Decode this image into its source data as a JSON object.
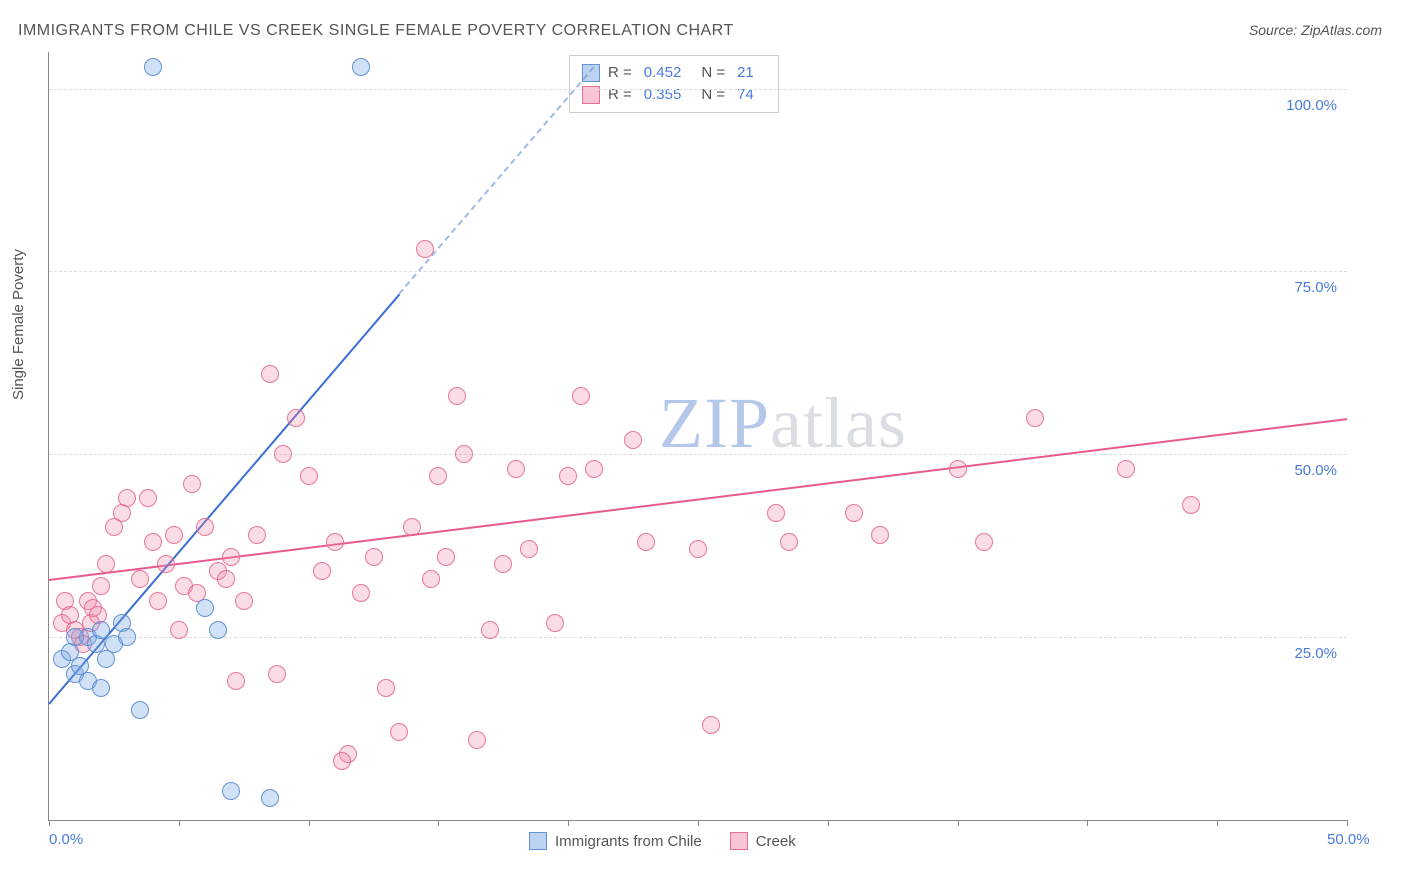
{
  "title": "IMMIGRANTS FROM CHILE VS CREEK SINGLE FEMALE POVERTY CORRELATION CHART",
  "source_label": "Source: ",
  "source_name": "ZipAtlas.com",
  "ylabel": "Single Female Poverty",
  "watermark_a": "ZIP",
  "watermark_b": "atlas",
  "chart": {
    "type": "scatter",
    "xlim": [
      0,
      50
    ],
    "ylim": [
      0,
      105
    ],
    "y_gridlines": [
      25,
      50,
      75,
      100
    ],
    "y_tick_labels": [
      "25.0%",
      "50.0%",
      "75.0%",
      "100.0%"
    ],
    "x_ticks": [
      0,
      5,
      10,
      15,
      20,
      25,
      30,
      35,
      40,
      45,
      50
    ],
    "x_tick_labels": {
      "0": "0.0%",
      "50": "50.0%"
    },
    "background_color": "#ffffff",
    "grid_color": "#dcdcdc",
    "axis_color": "#888888",
    "series": {
      "blue": {
        "label": "Immigrants from Chile",
        "color_fill": "rgba(120,165,225,0.35)",
        "color_stroke": "#5a8cd2",
        "R": "0.452",
        "N": "21",
        "points": [
          [
            0.5,
            22
          ],
          [
            0.8,
            23
          ],
          [
            1.0,
            20
          ],
          [
            1.2,
            21
          ],
          [
            1.5,
            19
          ],
          [
            1.5,
            25
          ],
          [
            1.8,
            24
          ],
          [
            2.0,
            26
          ],
          [
            2.2,
            22
          ],
          [
            2.5,
            24
          ],
          [
            2.8,
            27
          ],
          [
            3.0,
            25
          ],
          [
            3.5,
            15
          ],
          [
            4.0,
            103
          ],
          [
            6.0,
            29
          ],
          [
            6.5,
            26
          ],
          [
            7.0,
            4
          ],
          [
            8.5,
            3
          ],
          [
            12.0,
            103
          ],
          [
            1.0,
            25
          ],
          [
            2.0,
            18
          ]
        ],
        "trend": {
          "x1": 0,
          "y1": 16,
          "x2": 13.5,
          "y2": 72
        },
        "trend_dashed": {
          "x1": 13.5,
          "y1": 72,
          "x2": 21,
          "y2": 103
        }
      },
      "pink": {
        "label": "Creek",
        "color_fill": "rgba(240,140,170,0.30)",
        "color_stroke": "#e6648c",
        "R": "0.355",
        "N": "74",
        "points": [
          [
            0.5,
            27
          ],
          [
            0.6,
            30
          ],
          [
            0.8,
            28
          ],
          [
            1.0,
            26
          ],
          [
            1.2,
            25
          ],
          [
            1.5,
            30
          ],
          [
            1.6,
            27
          ],
          [
            1.7,
            29
          ],
          [
            2.0,
            32
          ],
          [
            2.2,
            35
          ],
          [
            2.5,
            40
          ],
          [
            2.8,
            42
          ],
          [
            3.0,
            44
          ],
          [
            3.5,
            33
          ],
          [
            4.0,
            38
          ],
          [
            4.2,
            30
          ],
          [
            4.5,
            35
          ],
          [
            5.0,
            26
          ],
          [
            5.2,
            32
          ],
          [
            5.5,
            46
          ],
          [
            5.7,
            31
          ],
          [
            6.0,
            40
          ],
          [
            6.5,
            34
          ],
          [
            7.0,
            36
          ],
          [
            7.2,
            19
          ],
          [
            7.5,
            30
          ],
          [
            8.0,
            39
          ],
          [
            8.5,
            61
          ],
          [
            9.0,
            50
          ],
          [
            9.5,
            55
          ],
          [
            10.0,
            47
          ],
          [
            10.5,
            34
          ],
          [
            11.0,
            38
          ],
          [
            11.5,
            9
          ],
          [
            12.0,
            31
          ],
          [
            12.5,
            36
          ],
          [
            13.0,
            18
          ],
          [
            13.5,
            12
          ],
          [
            14.0,
            40
          ],
          [
            14.5,
            78
          ],
          [
            15.0,
            47
          ],
          [
            15.3,
            36
          ],
          [
            15.7,
            58
          ],
          [
            16.0,
            50
          ],
          [
            16.5,
            11
          ],
          [
            17.0,
            26
          ],
          [
            18.0,
            48
          ],
          [
            18.5,
            37
          ],
          [
            20.0,
            47
          ],
          [
            20.5,
            58
          ],
          [
            21.0,
            48
          ],
          [
            22.5,
            52
          ],
          [
            23.0,
            38
          ],
          [
            25.0,
            37
          ],
          [
            25.5,
            13
          ],
          [
            28.0,
            42
          ],
          [
            28.5,
            38
          ],
          [
            31.0,
            42
          ],
          [
            32.0,
            39
          ],
          [
            35.0,
            48
          ],
          [
            36.0,
            38
          ],
          [
            38.0,
            55
          ],
          [
            41.5,
            48
          ],
          [
            44.0,
            43
          ],
          [
            1.3,
            24
          ],
          [
            1.9,
            28
          ],
          [
            3.8,
            44
          ],
          [
            4.8,
            39
          ],
          [
            6.8,
            33
          ],
          [
            8.8,
            20
          ],
          [
            11.3,
            8
          ],
          [
            14.7,
            33
          ],
          [
            17.5,
            35
          ],
          [
            19.5,
            27
          ]
        ],
        "trend": {
          "x1": 0,
          "y1": 33,
          "x2": 50,
          "y2": 55
        }
      }
    }
  },
  "legend_labels": {
    "r": "R =",
    "n": "N ="
  }
}
